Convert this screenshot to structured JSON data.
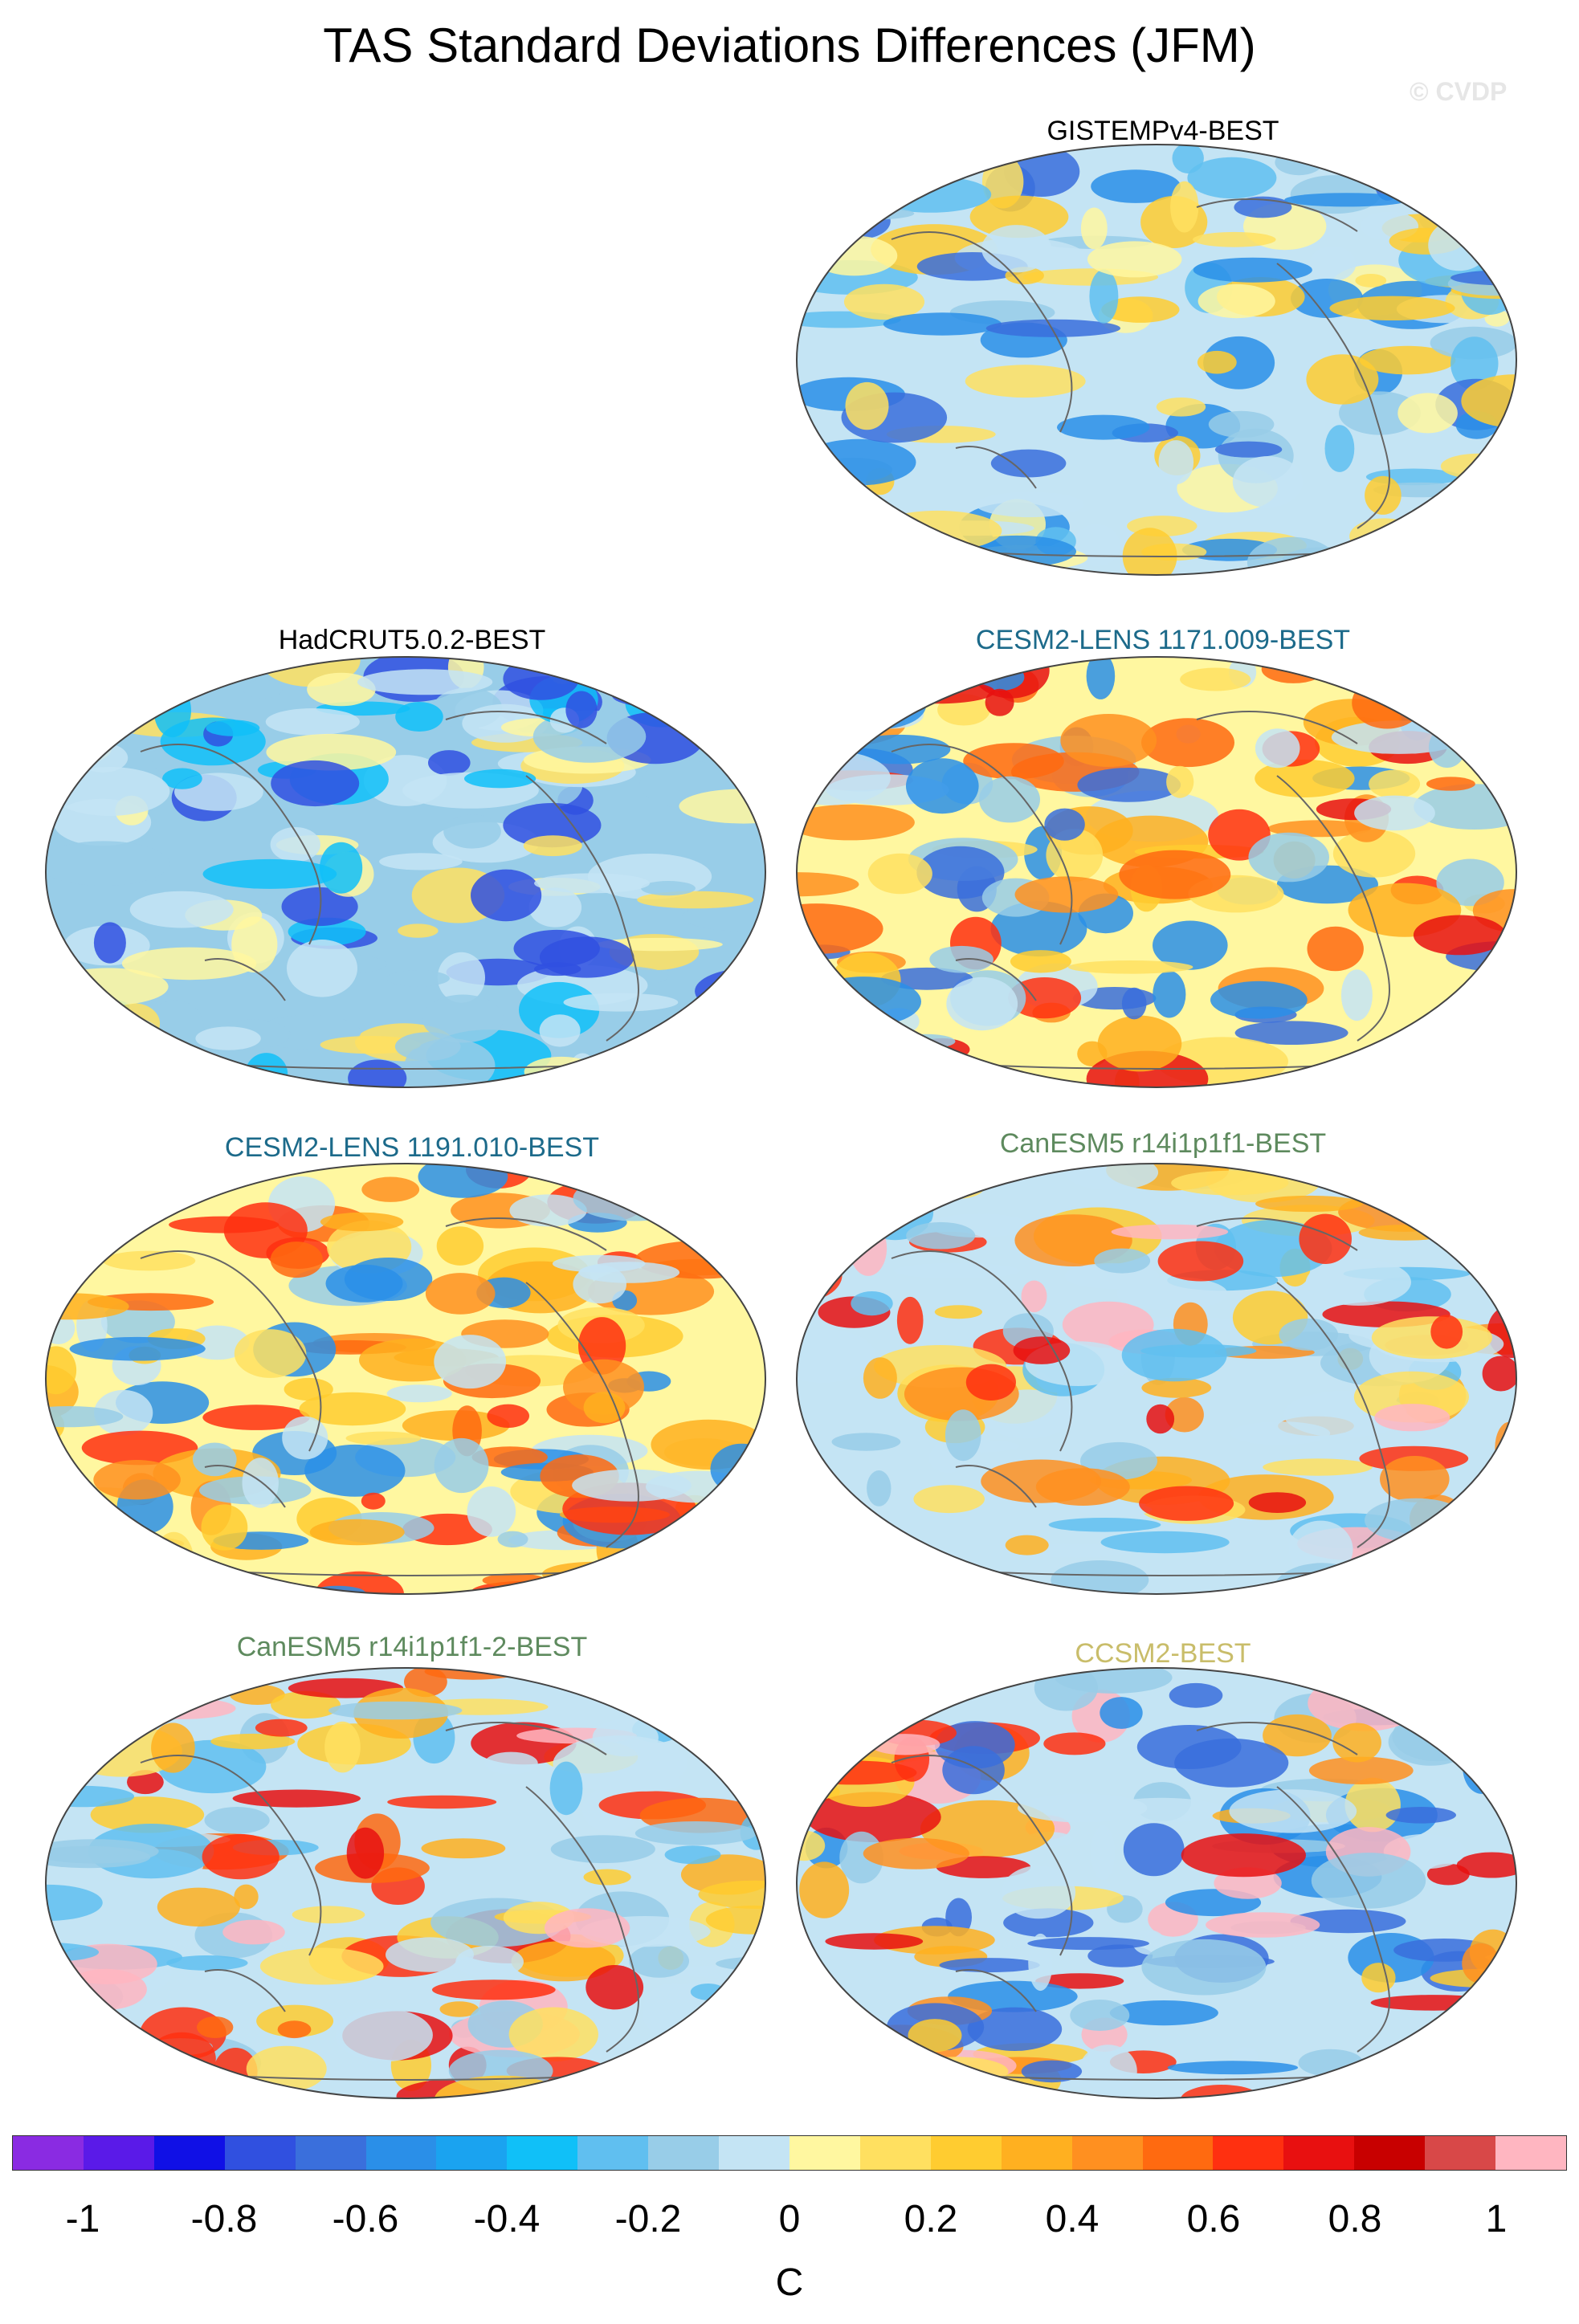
{
  "title": "TAS Standard Deviations Differences (JFM)",
  "watermark": "© CVDP",
  "panels": [
    {
      "label": "GISTEMPv4-BEST",
      "color": "#000000"
    },
    {
      "label": "HadCRUT5.0.2-BEST",
      "color": "#000000"
    },
    {
      "label": "CESM2-LENS 1171.009-BEST",
      "color": "#1c6a8a"
    },
    {
      "label": "CESM2-LENS 1191.010-BEST",
      "color": "#1c6a8a"
    },
    {
      "label": "CanESM5 r14i1p1f1-BEST",
      "color": "#5e8a5e"
    },
    {
      "label": "CanESM5 r14i1p1f1-2-BEST",
      "color": "#5e8a5e"
    },
    {
      "label": "CCSM2-BEST",
      "color": "#c9bd6a"
    }
  ],
  "colorbar": {
    "colors": [
      "#8a2be2",
      "#5a1ae8",
      "#1010e6",
      "#3050e0",
      "#3a6fdc",
      "#2a8fe8",
      "#1aa3f0",
      "#10c0f8",
      "#60bff0",
      "#98cde8",
      "#c4e4f4",
      "#fff7a0",
      "#ffe060",
      "#ffcc30",
      "#ffb020",
      "#ff9020",
      "#ff6a10",
      "#ff3010",
      "#e81010",
      "#c80000",
      "#d84848",
      "#ffb6c1"
    ],
    "ticks": [
      "-1",
      "-0.8",
      "-0.6",
      "-0.4",
      "-0.2",
      "0",
      "0.2",
      "0.4",
      "0.6",
      "0.8",
      "1"
    ],
    "unit": "C"
  }
}
